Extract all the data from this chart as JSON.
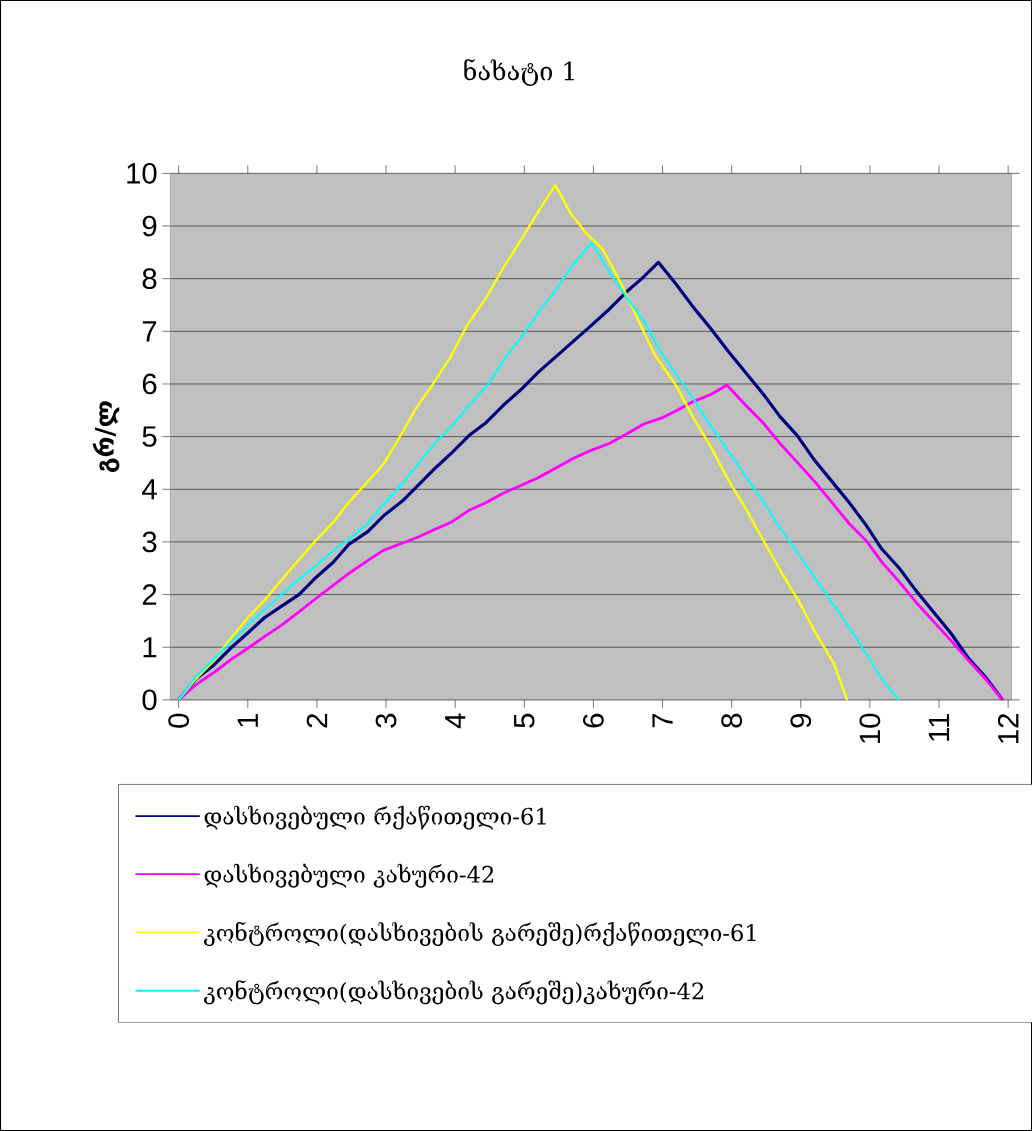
{
  "chart_data": {
    "type": "line",
    "title": "ნახატი 1",
    "ylabel": "გრ/ლ",
    "xlim": [
      -0.12,
      12.05
    ],
    "ylim": [
      0,
      10
    ],
    "xticks": [
      0,
      1,
      2,
      3,
      4,
      5,
      6,
      7,
      8,
      9,
      10,
      11,
      12
    ],
    "yticks": [
      0,
      1,
      2,
      3,
      4,
      5,
      6,
      7,
      8,
      9,
      10
    ],
    "grid": "y",
    "legend": "bottom",
    "line_style": "solid",
    "series": [
      {
        "name": "დასხივებული  რქაწითელი-61",
        "color": "#000080",
        "x": [
          0,
          0.25,
          0.5,
          0.75,
          1.0,
          1.24,
          1.49,
          1.74,
          1.99,
          2.24,
          2.46,
          2.74,
          2.96,
          3.24,
          3.46,
          3.71,
          3.95,
          4.2,
          4.45,
          4.7,
          4.95,
          5.2,
          5.45,
          5.7,
          5.95,
          6.23,
          6.48,
          6.7,
          6.94,
          7.2,
          7.45,
          7.7,
          7.95,
          8.2,
          8.45,
          8.7,
          8.95,
          9.2,
          9.45,
          9.7,
          9.95,
          10.17,
          10.42,
          10.67,
          10.92,
          11.17,
          11.42,
          11.67,
          11.92
        ],
        "values": [
          0,
          0.4,
          0.65,
          0.98,
          1.27,
          1.56,
          1.78,
          2.0,
          2.33,
          2.62,
          2.95,
          3.2,
          3.49,
          3.78,
          4.07,
          4.4,
          4.69,
          5.02,
          5.27,
          5.6,
          5.89,
          6.22,
          6.51,
          6.8,
          7.09,
          7.42,
          7.75,
          8.0,
          8.31,
          7.89,
          7.45,
          7.05,
          6.62,
          6.22,
          5.82,
          5.38,
          5.02,
          4.55,
          4.15,
          3.75,
          3.31,
          2.87,
          2.51,
          2.07,
          1.67,
          1.27,
          0.8,
          0.44,
          0
        ]
      },
      {
        "name": "დასხივებული  კახური-42",
        "color": "#ff00ff",
        "x": [
          0,
          0.25,
          0.5,
          0.75,
          1.0,
          1.24,
          1.49,
          1.74,
          1.99,
          2.24,
          2.46,
          2.74,
          2.96,
          3.24,
          3.46,
          3.71,
          3.95,
          4.2,
          4.45,
          4.7,
          4.95,
          5.2,
          5.45,
          5.7,
          5.95,
          6.23,
          6.48,
          6.73,
          6.98,
          7.2,
          7.45,
          7.7,
          7.93,
          8.2,
          8.45,
          8.7,
          8.95,
          9.2,
          9.45,
          9.7,
          9.95,
          10.17,
          10.42,
          10.67,
          10.92,
          11.17,
          11.42,
          11.67,
          11.92
        ],
        "values": [
          0,
          0.29,
          0.51,
          0.76,
          0.98,
          1.2,
          1.42,
          1.67,
          1.93,
          2.18,
          2.4,
          2.65,
          2.84,
          2.98,
          3.09,
          3.24,
          3.38,
          3.6,
          3.75,
          3.93,
          4.07,
          4.22,
          4.4,
          4.58,
          4.73,
          4.87,
          5.05,
          5.24,
          5.35,
          5.49,
          5.67,
          5.8,
          5.98,
          5.6,
          5.27,
          4.87,
          4.51,
          4.15,
          3.75,
          3.35,
          3.02,
          2.62,
          2.25,
          1.85,
          1.49,
          1.13,
          0.76,
          0.4,
          0
        ]
      },
      {
        "name": "კონტროლი(დასხივების  გარეშე)რქაწითელი-61",
        "color": "#ffff00",
        "x": [
          0,
          0.22,
          0.5,
          0.75,
          1.0,
          1.24,
          1.47,
          1.71,
          2.0,
          2.24,
          2.46,
          2.71,
          2.96,
          3.18,
          3.43,
          3.68,
          3.93,
          4.18,
          4.45,
          4.67,
          4.95,
          5.17,
          5.45,
          5.67,
          5.89,
          6.14,
          6.39,
          6.64,
          6.89,
          7.2,
          7.45,
          7.7,
          7.95,
          8.2,
          8.45,
          8.7,
          8.98,
          9.23,
          9.48,
          9.67
        ],
        "values": [
          0,
          0.36,
          0.73,
          1.16,
          1.56,
          1.89,
          2.25,
          2.62,
          3.05,
          3.38,
          3.75,
          4.11,
          4.47,
          4.95,
          5.53,
          6.0,
          6.51,
          7.13,
          7.64,
          8.15,
          8.73,
          9.2,
          9.78,
          9.24,
          8.87,
          8.55,
          7.93,
          7.24,
          6.55,
          5.96,
          5.35,
          4.8,
          4.18,
          3.64,
          3.05,
          2.47,
          1.85,
          1.24,
          0.69,
          0
        ]
      },
      {
        "name": "კონტროლი(დასხივების  გარეშე)კახური-42",
        "color": "#00ffff",
        "x": [
          0,
          0.25,
          0.75,
          0.97,
          1.24,
          1.49,
          1.74,
          1.99,
          2.24,
          2.46,
          2.74,
          2.96,
          3.24,
          3.48,
          3.73,
          3.98,
          4.23,
          4.48,
          4.73,
          4.95,
          5.2,
          5.45,
          5.67,
          5.97,
          6.23,
          6.48,
          6.73,
          6.95,
          7.2,
          7.45,
          7.7,
          7.95,
          8.2,
          8.45,
          8.7,
          8.95,
          9.2,
          9.45,
          9.7,
          9.95,
          10.17,
          10.42
        ],
        "values": [
          0,
          0.44,
          1.09,
          1.38,
          1.71,
          2.0,
          2.29,
          2.55,
          2.84,
          3.05,
          3.35,
          3.71,
          4.11,
          4.51,
          4.91,
          5.24,
          5.64,
          6.0,
          6.51,
          6.87,
          7.35,
          7.78,
          8.2,
          8.69,
          8.13,
          7.65,
          7.2,
          6.66,
          6.18,
          5.71,
          5.2,
          4.73,
          4.25,
          3.78,
          3.27,
          2.8,
          2.33,
          1.85,
          1.38,
          0.87,
          0.4,
          0
        ]
      }
    ]
  }
}
